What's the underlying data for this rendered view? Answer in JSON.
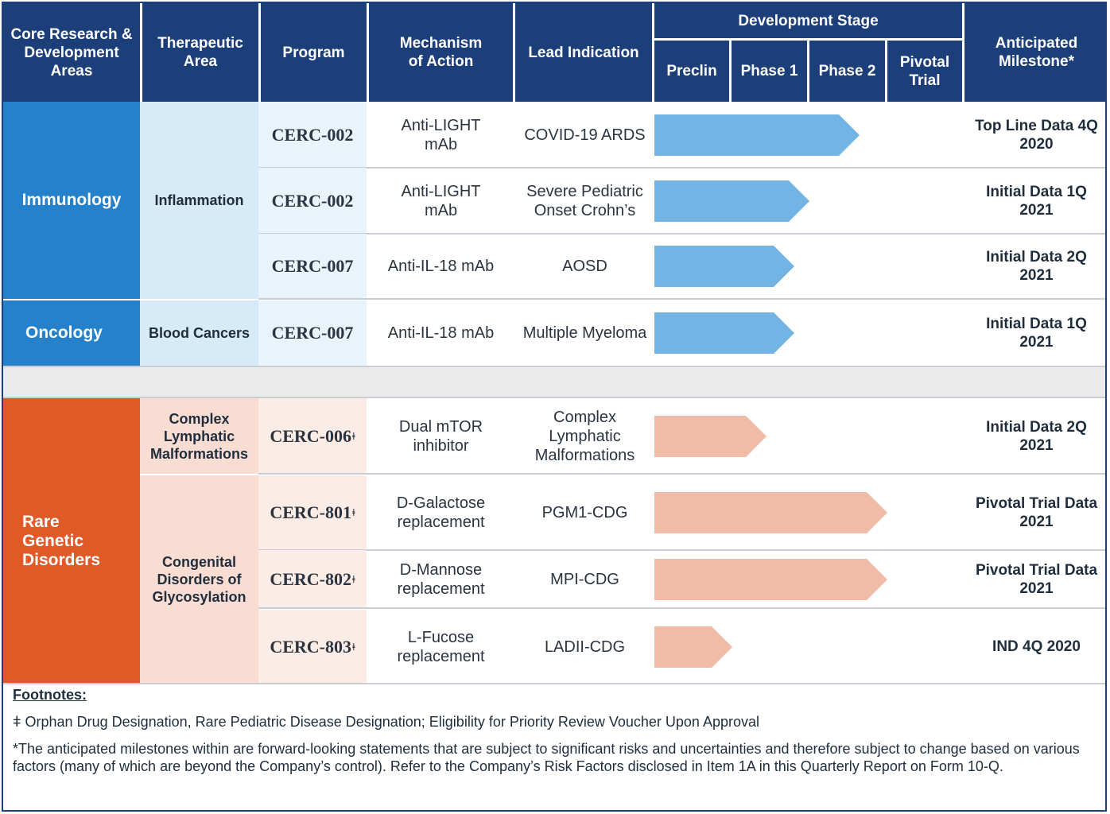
{
  "headers": {
    "area": "Core Research & Development Areas",
    "therapeutic": "Therapeutic Area",
    "program": "Program",
    "mechanism": "Mechanism of Action",
    "indication": "Lead Indication",
    "stage": "Development Stage",
    "stages": [
      "Preclin",
      "Phase 1",
      "Phase 2",
      "Pivotal Trial"
    ],
    "milestone": "Anticipated Milestone*"
  },
  "areas": {
    "immunology": "Immunology",
    "oncology": "Oncology",
    "rare": "Rare Genetic Disorders"
  },
  "therapeutic_areas": {
    "inflammation": "Inflammation",
    "blood": "Blood Cancers",
    "clm": "Complex Lymphatic Malformations",
    "cdg": "Congenital Disorders of Glycosylation"
  },
  "colors": {
    "header": "#1c3f7a",
    "immuno_area": "#2581c9",
    "immuno_ther": "#d6eaf8",
    "immuno_prog": "#e8f3fb",
    "immuno_bar": "#72b4e3",
    "rare_area": "#e05a28",
    "rare_ther": "#f9ddd3",
    "rare_prog": "#fcecE6",
    "rare_bar": "#f0bba7",
    "spacer": "#ebebeb"
  },
  "chart_data": {
    "type": "bar",
    "orientation": "horizontal",
    "categories": [
      "Preclin",
      "Phase 1",
      "Phase 2",
      "Pivotal Trial"
    ],
    "rows": [
      {
        "program": "CERC-002",
        "dagger": false,
        "mechanism": "Anti-LIGHT mAb",
        "indication": "COVID-19 ARDS",
        "progress": 2.65,
        "milestone": "Top Line Data 4Q 2020",
        "group": "immuno"
      },
      {
        "program": "CERC-002",
        "dagger": false,
        "mechanism": "Anti-LIGHT mAb",
        "indication": "Severe Pediatric Onset Crohn’s",
        "progress": 2.0,
        "milestone": "Initial Data 1Q 2021",
        "group": "immuno"
      },
      {
        "program": "CERC-007",
        "dagger": false,
        "mechanism": "Anti-IL-18 mAb",
        "indication": "AOSD",
        "progress": 1.8,
        "milestone": "Initial Data 2Q 2021",
        "group": "immuno"
      },
      {
        "program": "CERC-007",
        "dagger": false,
        "mechanism": "Anti-IL-18 mAb",
        "indication": "Multiple Myeloma",
        "progress": 1.8,
        "milestone": "Initial Data 1Q 2021",
        "group": "immuno"
      },
      {
        "program": "CERC-006",
        "dagger": true,
        "mechanism": "Dual mTOR inhibitor",
        "indication": "Complex Lymphatic Malformations",
        "progress": 1.45,
        "milestone": "Initial Data 2Q 2021",
        "group": "rare"
      },
      {
        "program": "CERC-801",
        "dagger": true,
        "mechanism": "D-Galactose replacement",
        "indication": "PGM1-CDG",
        "progress": 3.0,
        "milestone": "Pivotal Trial Data 2021",
        "group": "rare"
      },
      {
        "program": "CERC-802",
        "dagger": true,
        "mechanism": "D-Mannose replacement",
        "indication": "MPI-CDG",
        "progress": 3.0,
        "milestone": "Pivotal Trial Data 2021",
        "group": "rare"
      },
      {
        "program": "CERC-803",
        "dagger": true,
        "mechanism": "L-Fucose replacement",
        "indication": "LADII-CDG",
        "progress": 1.0,
        "milestone": "IND 4Q 2020",
        "group": "rare"
      }
    ],
    "xlim": [
      0,
      4
    ]
  },
  "dagger_symbol": "ǂ",
  "footnotes": {
    "title": "Footnotes:",
    "dagger_symbol": "ǂ",
    "dagger_text": "Orphan Drug Designation, Rare Pediatric Disease Designation; Eligibility for Priority Review Voucher Upon Approval",
    "asterisk": "*The anticipated milestones within are forward-looking statements that are subject to significant risks and uncertainties and therefore subject to change based on various factors (many of which are beyond the Company’s control).  Refer to the Company’s Risk Factors disclosed in Item 1A in this Quarterly Report on Form 10-Q."
  }
}
